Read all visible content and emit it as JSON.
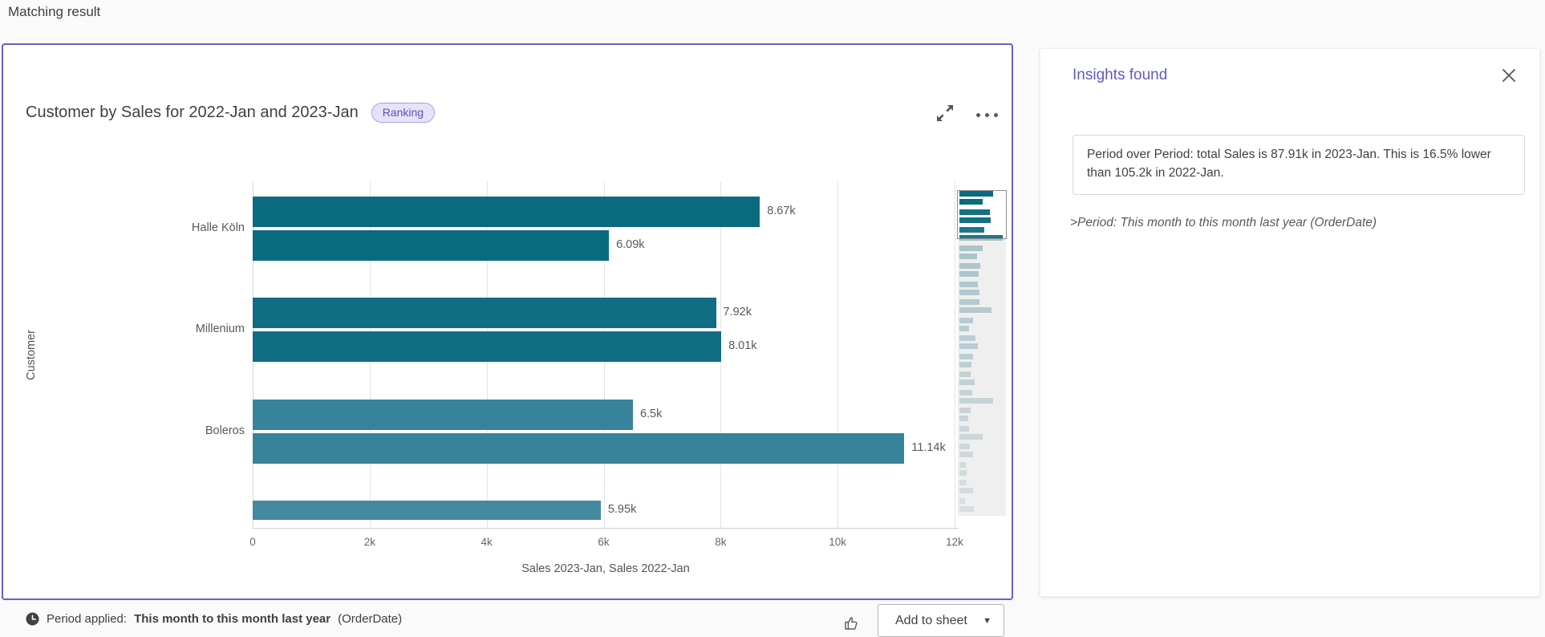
{
  "page": {
    "heading": "Matching result"
  },
  "colors": {
    "card_border": "#6a5fc8",
    "insights_title": "#5f5bc5",
    "badge_text": "#5a54c0",
    "badge_bg": "#e6e2f8",
    "minimap_color_start": "#0a6a80",
    "minimap_color_end": "#b9c8d2"
  },
  "card": {
    "title": "Customer by Sales for 2022-Jan and 2023-Jan",
    "badge": "Ranking",
    "footer": {
      "period_label": "Period applied:",
      "period_value": "This month to this month last year",
      "period_suffix": "(OrderDate)",
      "add_to_sheet": "Add to sheet",
      "caret": "▼"
    }
  },
  "chart_data": {
    "type": "bar",
    "orientation": "horizontal",
    "title": "Customer by Sales for 2022-Jan and 2023-Jan",
    "xlabel": "Sales 2023-Jan, Sales 2022-Jan",
    "ylabel": "Customer",
    "series_names": [
      "Sales 2023-Jan",
      "Sales 2022-Jan"
    ],
    "xlim": [
      0,
      12000
    ],
    "xtick_labels": [
      "0",
      "2k",
      "4k",
      "6k",
      "8k",
      "10k",
      "12k"
    ],
    "xtick_values": [
      0,
      2000,
      4000,
      6000,
      8000,
      10000,
      12000
    ],
    "grid": true,
    "legend": false,
    "groups": [
      {
        "category": "Halle Köln",
        "bars": [
          {
            "series": "Sales 2023-Jan",
            "value": 8670,
            "label": "8.67k"
          },
          {
            "series": "Sales 2022-Jan",
            "value": 6090,
            "label": "6.09k"
          }
        ],
        "color": "#0a6a80"
      },
      {
        "category": "Millenium",
        "bars": [
          {
            "series": "Sales 2023-Jan",
            "value": 7920,
            "label": "7.92k"
          },
          {
            "series": "Sales 2022-Jan",
            "value": 8010,
            "label": "8.01k"
          }
        ],
        "color": "#106d83"
      },
      {
        "category": "Boleros",
        "bars": [
          {
            "series": "Sales 2023-Jan",
            "value": 6500,
            "label": "6.5k"
          },
          {
            "series": "Sales 2022-Jan",
            "value": 11140,
            "label": "11.14k"
          }
        ],
        "color": "#37839b"
      },
      {
        "category": "",
        "bars": [
          {
            "series": "Sales 2023-Jan",
            "value": 5950,
            "label": "5.95k"
          }
        ],
        "color": "#45899f",
        "partial": true
      }
    ],
    "minimap_pairs": [
      [
        0.7,
        0.49
      ],
      [
        0.64,
        0.65
      ],
      [
        0.52,
        0.9
      ],
      [
        0.48,
        0.36
      ],
      [
        0.44,
        0.4
      ],
      [
        0.38,
        0.42
      ],
      [
        0.42,
        0.66
      ],
      [
        0.28,
        0.2
      ],
      [
        0.34,
        0.38
      ],
      [
        0.28,
        0.25
      ],
      [
        0.24,
        0.31
      ],
      [
        0.27,
        0.7
      ],
      [
        0.23,
        0.18
      ],
      [
        0.2,
        0.48
      ],
      [
        0.22,
        0.29
      ],
      [
        0.13,
        0.15
      ],
      [
        0.15,
        0.28
      ],
      [
        0.12,
        0.3
      ]
    ]
  },
  "insights_panel": {
    "title": "Insights found",
    "insight_text": "Period over Period: total Sales is 87.91k in 2023-Jan. This is 16.5% lower than 105.2k in 2022-Jan.",
    "period_note": ">Period: This month to this month last year (OrderDate)"
  }
}
